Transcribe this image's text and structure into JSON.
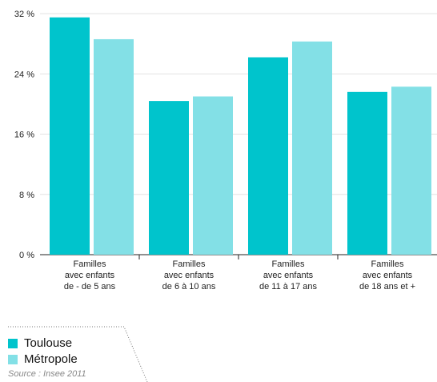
{
  "colors": {
    "toulouse": "#00c4cc",
    "metropole": "#83e0e6",
    "grid": "#e3e3e3",
    "axis": "#222222"
  },
  "chart_data": {
    "type": "bar",
    "categories": [
      [
        "Familles",
        "avec enfants",
        "de - de 5 ans"
      ],
      [
        "Familles",
        "avec enfants",
        "de 6 à 10 ans"
      ],
      [
        "Familles",
        "avec enfants",
        "de 11 à 17 ans"
      ],
      [
        "Familles",
        "avec enfants",
        "de 18 ans et +"
      ]
    ],
    "series": [
      {
        "name": "Toulouse",
        "values": [
          31.5,
          20.4,
          26.2,
          21.6
        ]
      },
      {
        "name": "Métropole",
        "values": [
          28.6,
          21.0,
          28.3,
          22.3
        ]
      }
    ],
    "ylim": [
      0,
      32
    ],
    "yticks": [
      0,
      8,
      16,
      24,
      32
    ],
    "ytick_labels": [
      "0 %",
      "8 %",
      "16 %",
      "24 %",
      "32 %"
    ],
    "grid": true,
    "legend_position": "bottom-left"
  },
  "legend": {
    "items": [
      "Toulouse",
      "Métropole"
    ],
    "source": "Source : Insee 2011"
  }
}
